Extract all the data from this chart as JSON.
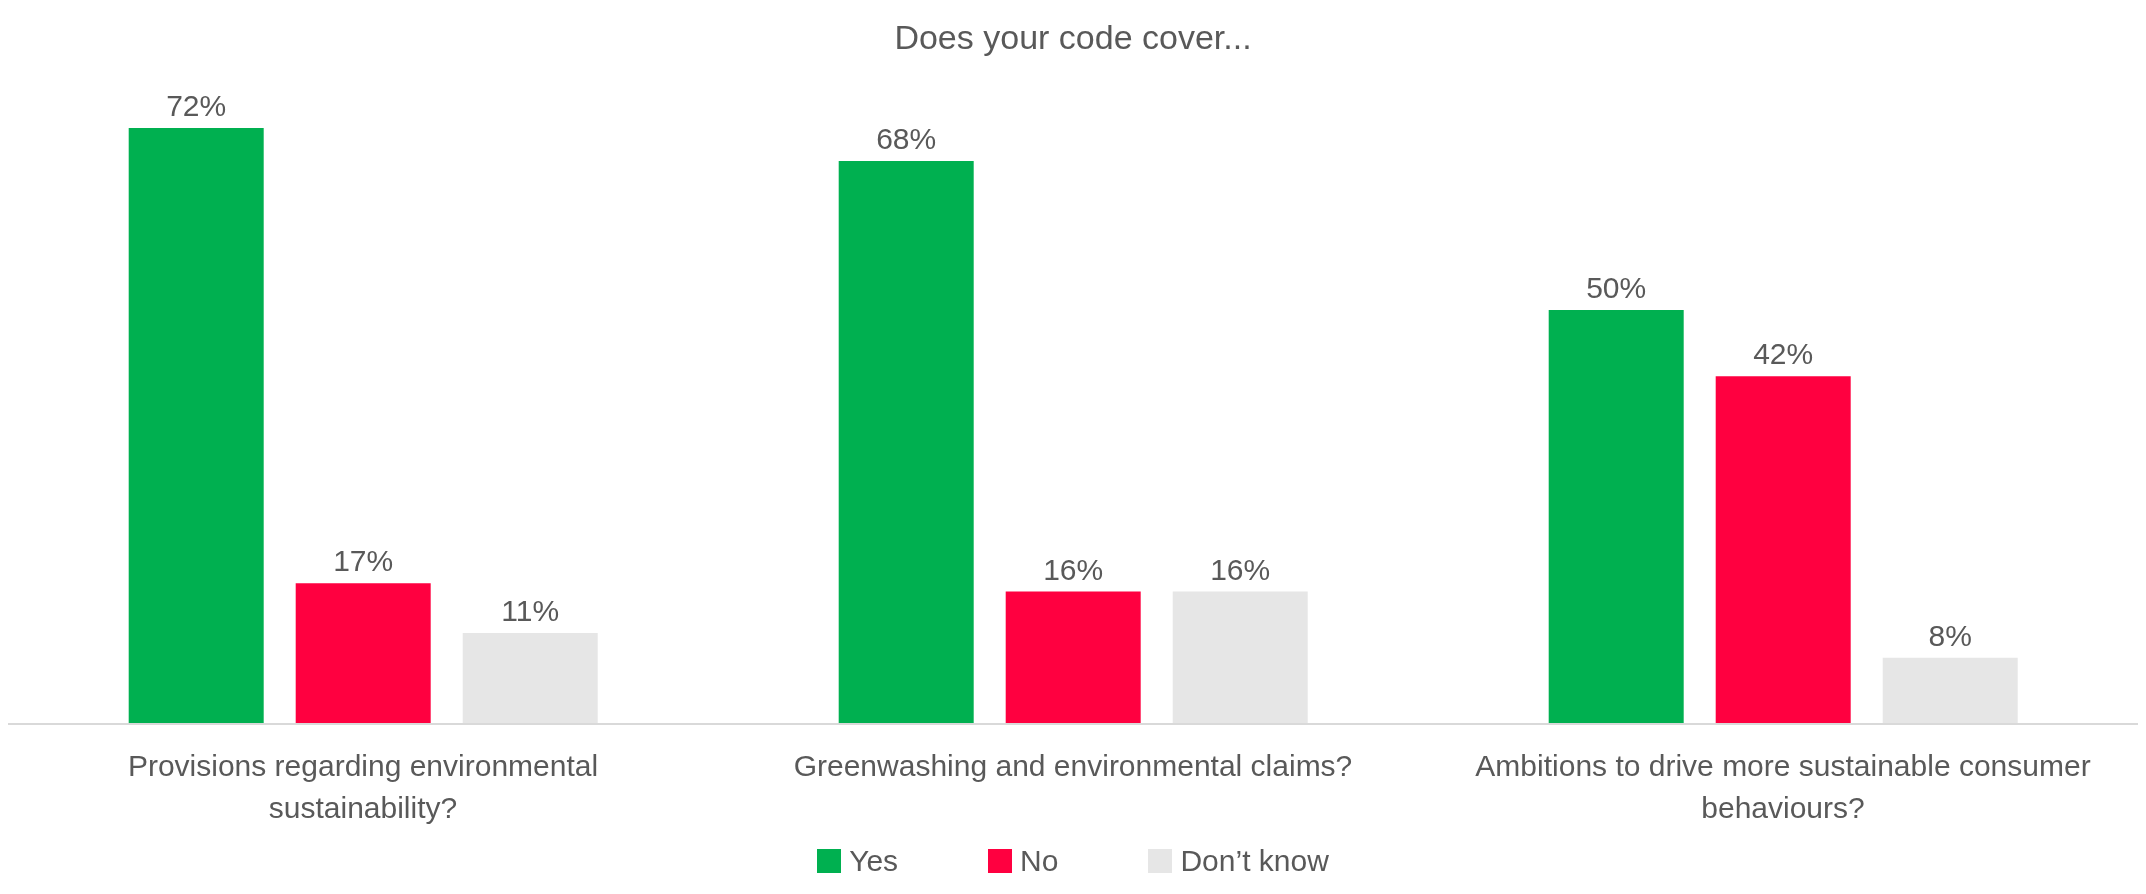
{
  "chart_data": {
    "type": "bar",
    "title": "Does your code cover...",
    "categories": [
      "Provisions regarding environmental sustainability?",
      "Greenwashing and environmental claims?",
      "Ambitions to drive more sustainable consumer behaviours?"
    ],
    "series": [
      {
        "name": "Yes",
        "color": "#00b050",
        "values": [
          72,
          68,
          50
        ],
        "value_labels": [
          "72%",
          "68%",
          "50%"
        ]
      },
      {
        "name": "No",
        "color": "#ff0040",
        "values": [
          17,
          16,
          42
        ],
        "value_labels": [
          "17%",
          "16%",
          "42%"
        ]
      },
      {
        "name": "Don’t know",
        "color": "#e6e6e6",
        "values": [
          11,
          16,
          8
        ],
        "value_labels": [
          "11%",
          "16%",
          "8%"
        ]
      }
    ],
    "legend": "bottom",
    "grid": false
  }
}
